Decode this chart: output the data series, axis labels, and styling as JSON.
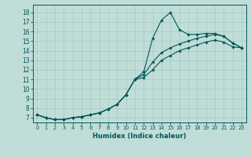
{
  "xlabel": "Humidex (Indice chaleur)",
  "bg_color": "#c0ddd8",
  "grid_color": "#a8c8c4",
  "line_color": "#005858",
  "xlim": [
    -0.5,
    23.5
  ],
  "ylim": [
    6.5,
    18.8
  ],
  "xticks": [
    0,
    1,
    2,
    3,
    4,
    5,
    6,
    7,
    8,
    9,
    10,
    11,
    12,
    13,
    14,
    15,
    16,
    17,
    18,
    19,
    20,
    21,
    22,
    23
  ],
  "yticks": [
    7,
    8,
    9,
    10,
    11,
    12,
    13,
    14,
    15,
    16,
    17,
    18
  ],
  "series1_x": [
    0,
    1,
    2,
    3,
    4,
    5,
    6,
    7,
    8,
    9,
    10,
    11,
    12,
    13,
    14,
    15,
    16,
    17,
    18,
    19,
    20,
    21,
    22,
    23
  ],
  "series1_y": [
    7.3,
    7.0,
    6.8,
    6.8,
    7.0,
    7.1,
    7.3,
    7.5,
    7.9,
    8.4,
    9.4,
    11.0,
    11.8,
    15.3,
    17.2,
    18.0,
    16.2,
    15.7,
    15.7,
    15.8,
    15.8,
    15.5,
    14.8,
    14.3
  ],
  "series2_x": [
    0,
    1,
    2,
    3,
    4,
    5,
    6,
    7,
    8,
    9,
    10,
    11,
    12,
    13,
    14,
    15,
    16,
    17,
    18,
    19,
    20,
    21,
    22,
    23
  ],
  "series2_y": [
    7.3,
    7.0,
    6.8,
    6.8,
    7.0,
    7.1,
    7.3,
    7.5,
    7.9,
    8.4,
    9.4,
    11.0,
    11.5,
    12.8,
    13.8,
    14.3,
    14.7,
    15.0,
    15.3,
    15.5,
    15.7,
    15.5,
    14.8,
    14.3
  ],
  "series3_x": [
    0,
    1,
    2,
    3,
    4,
    5,
    6,
    7,
    8,
    9,
    10,
    11,
    12,
    13,
    14,
    15,
    16,
    17,
    18,
    19,
    20,
    21,
    22,
    23
  ],
  "series3_y": [
    7.3,
    7.0,
    6.8,
    6.8,
    7.0,
    7.1,
    7.3,
    7.5,
    7.9,
    8.4,
    9.4,
    11.0,
    11.2,
    12.0,
    13.0,
    13.5,
    14.0,
    14.3,
    14.6,
    14.9,
    15.1,
    14.9,
    14.4,
    14.3
  ],
  "tick_fontsize": 5.5,
  "xlabel_fontsize": 6.0
}
